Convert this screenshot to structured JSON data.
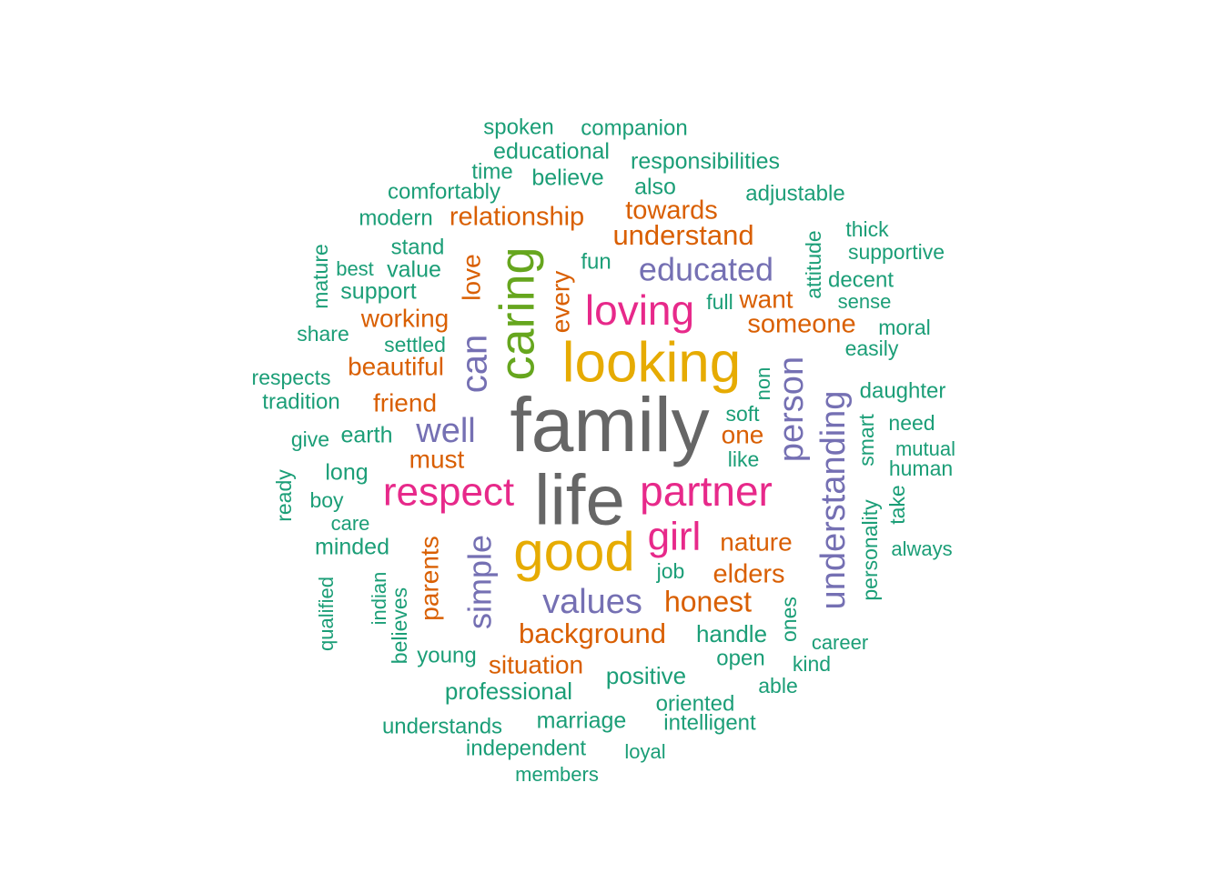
{
  "chart_data": {
    "type": "wordcloud",
    "palette": {
      "gray": "#666666",
      "gold": "#E6AB02",
      "green": "#66A61E",
      "pink": "#E7298A",
      "purple": "#7570B3",
      "orange": "#D95F02",
      "teal": "#1B9E77"
    },
    "words": [
      {
        "text": "family",
        "color": "gray",
        "rank": 1
      },
      {
        "text": "life",
        "color": "gray",
        "rank": 1
      },
      {
        "text": "looking",
        "color": "gold",
        "rank": 2
      },
      {
        "text": "good",
        "color": "gold",
        "rank": 2
      },
      {
        "text": "caring",
        "color": "green",
        "rank": 3
      },
      {
        "text": "loving",
        "color": "pink",
        "rank": 4
      },
      {
        "text": "respect",
        "color": "pink",
        "rank": 4
      },
      {
        "text": "partner",
        "color": "pink",
        "rank": 4
      },
      {
        "text": "girl",
        "color": "pink",
        "rank": 4
      },
      {
        "text": "educated",
        "color": "purple",
        "rank": 5
      },
      {
        "text": "can",
        "color": "purple",
        "rank": 5
      },
      {
        "text": "well",
        "color": "purple",
        "rank": 5
      },
      {
        "text": "person",
        "color": "purple",
        "rank": 5
      },
      {
        "text": "understanding",
        "color": "purple",
        "rank": 5
      },
      {
        "text": "simple",
        "color": "purple",
        "rank": 5
      },
      {
        "text": "values",
        "color": "purple",
        "rank": 5
      },
      {
        "text": "relationship",
        "color": "orange",
        "rank": 6
      },
      {
        "text": "towards",
        "color": "orange",
        "rank": 6
      },
      {
        "text": "understand",
        "color": "orange",
        "rank": 6
      },
      {
        "text": "want",
        "color": "orange",
        "rank": 6
      },
      {
        "text": "someone",
        "color": "orange",
        "rank": 6
      },
      {
        "text": "love",
        "color": "orange",
        "rank": 6
      },
      {
        "text": "every",
        "color": "orange",
        "rank": 6
      },
      {
        "text": "working",
        "color": "orange",
        "rank": 6
      },
      {
        "text": "beautiful",
        "color": "orange",
        "rank": 6
      },
      {
        "text": "friend",
        "color": "orange",
        "rank": 6
      },
      {
        "text": "must",
        "color": "orange",
        "rank": 6
      },
      {
        "text": "one",
        "color": "orange",
        "rank": 6
      },
      {
        "text": "nature",
        "color": "orange",
        "rank": 6
      },
      {
        "text": "elders",
        "color": "orange",
        "rank": 6
      },
      {
        "text": "honest",
        "color": "orange",
        "rank": 6
      },
      {
        "text": "background",
        "color": "orange",
        "rank": 6
      },
      {
        "text": "situation",
        "color": "orange",
        "rank": 6
      },
      {
        "text": "parents",
        "color": "orange",
        "rank": 6
      },
      {
        "text": "spoken",
        "color": "teal",
        "rank": 7
      },
      {
        "text": "companion",
        "color": "teal",
        "rank": 7
      },
      {
        "text": "educational",
        "color": "teal",
        "rank": 7
      },
      {
        "text": "time",
        "color": "teal",
        "rank": 7
      },
      {
        "text": "responsibilities",
        "color": "teal",
        "rank": 7
      },
      {
        "text": "believe",
        "color": "teal",
        "rank": 7
      },
      {
        "text": "comfortably",
        "color": "teal",
        "rank": 7
      },
      {
        "text": "also",
        "color": "teal",
        "rank": 7
      },
      {
        "text": "adjustable",
        "color": "teal",
        "rank": 7
      },
      {
        "text": "modern",
        "color": "teal",
        "rank": 7
      },
      {
        "text": "stand",
        "color": "teal",
        "rank": 7
      },
      {
        "text": "thick",
        "color": "teal",
        "rank": 7
      },
      {
        "text": "mature",
        "color": "teal",
        "rank": 7
      },
      {
        "text": "best",
        "color": "teal",
        "rank": 7
      },
      {
        "text": "value",
        "color": "teal",
        "rank": 7
      },
      {
        "text": "fun",
        "color": "teal",
        "rank": 7
      },
      {
        "text": "attitude",
        "color": "teal",
        "rank": 7
      },
      {
        "text": "supportive",
        "color": "teal",
        "rank": 7
      },
      {
        "text": "support",
        "color": "teal",
        "rank": 7
      },
      {
        "text": "decent",
        "color": "teal",
        "rank": 7
      },
      {
        "text": "full",
        "color": "teal",
        "rank": 7
      },
      {
        "text": "sense",
        "color": "teal",
        "rank": 7
      },
      {
        "text": "share",
        "color": "teal",
        "rank": 7
      },
      {
        "text": "moral",
        "color": "teal",
        "rank": 7
      },
      {
        "text": "settled",
        "color": "teal",
        "rank": 7
      },
      {
        "text": "easily",
        "color": "teal",
        "rank": 7
      },
      {
        "text": "respects",
        "color": "teal",
        "rank": 7
      },
      {
        "text": "non",
        "color": "teal",
        "rank": 7
      },
      {
        "text": "tradition",
        "color": "teal",
        "rank": 7
      },
      {
        "text": "daughter",
        "color": "teal",
        "rank": 7
      },
      {
        "text": "soft",
        "color": "teal",
        "rank": 7
      },
      {
        "text": "give",
        "color": "teal",
        "rank": 7
      },
      {
        "text": "earth",
        "color": "teal",
        "rank": 7
      },
      {
        "text": "need",
        "color": "teal",
        "rank": 7
      },
      {
        "text": "smart",
        "color": "teal",
        "rank": 7
      },
      {
        "text": "mutual",
        "color": "teal",
        "rank": 7
      },
      {
        "text": "like",
        "color": "teal",
        "rank": 7
      },
      {
        "text": "long",
        "color": "teal",
        "rank": 7
      },
      {
        "text": "human",
        "color": "teal",
        "rank": 7
      },
      {
        "text": "ready",
        "color": "teal",
        "rank": 7
      },
      {
        "text": "boy",
        "color": "teal",
        "rank": 7
      },
      {
        "text": "take",
        "color": "teal",
        "rank": 7
      },
      {
        "text": "care",
        "color": "teal",
        "rank": 7
      },
      {
        "text": "personality",
        "color": "teal",
        "rank": 7
      },
      {
        "text": "minded",
        "color": "teal",
        "rank": 7
      },
      {
        "text": "always",
        "color": "teal",
        "rank": 7
      },
      {
        "text": "job",
        "color": "teal",
        "rank": 7
      },
      {
        "text": "qualified",
        "color": "teal",
        "rank": 7
      },
      {
        "text": "indian",
        "color": "teal",
        "rank": 7
      },
      {
        "text": "believes",
        "color": "teal",
        "rank": 7
      },
      {
        "text": "ones",
        "color": "teal",
        "rank": 7
      },
      {
        "text": "handle",
        "color": "teal",
        "rank": 7
      },
      {
        "text": "career",
        "color": "teal",
        "rank": 7
      },
      {
        "text": "young",
        "color": "teal",
        "rank": 7
      },
      {
        "text": "open",
        "color": "teal",
        "rank": 7
      },
      {
        "text": "kind",
        "color": "teal",
        "rank": 7
      },
      {
        "text": "positive",
        "color": "teal",
        "rank": 7
      },
      {
        "text": "able",
        "color": "teal",
        "rank": 7
      },
      {
        "text": "professional",
        "color": "teal",
        "rank": 7
      },
      {
        "text": "oriented",
        "color": "teal",
        "rank": 7
      },
      {
        "text": "marriage",
        "color": "teal",
        "rank": 7
      },
      {
        "text": "intelligent",
        "color": "teal",
        "rank": 7
      },
      {
        "text": "understands",
        "color": "teal",
        "rank": 7
      },
      {
        "text": "independent",
        "color": "teal",
        "rank": 7
      },
      {
        "text": "loyal",
        "color": "teal",
        "rank": 7
      },
      {
        "text": "members",
        "color": "teal",
        "rank": 7
      }
    ]
  }
}
